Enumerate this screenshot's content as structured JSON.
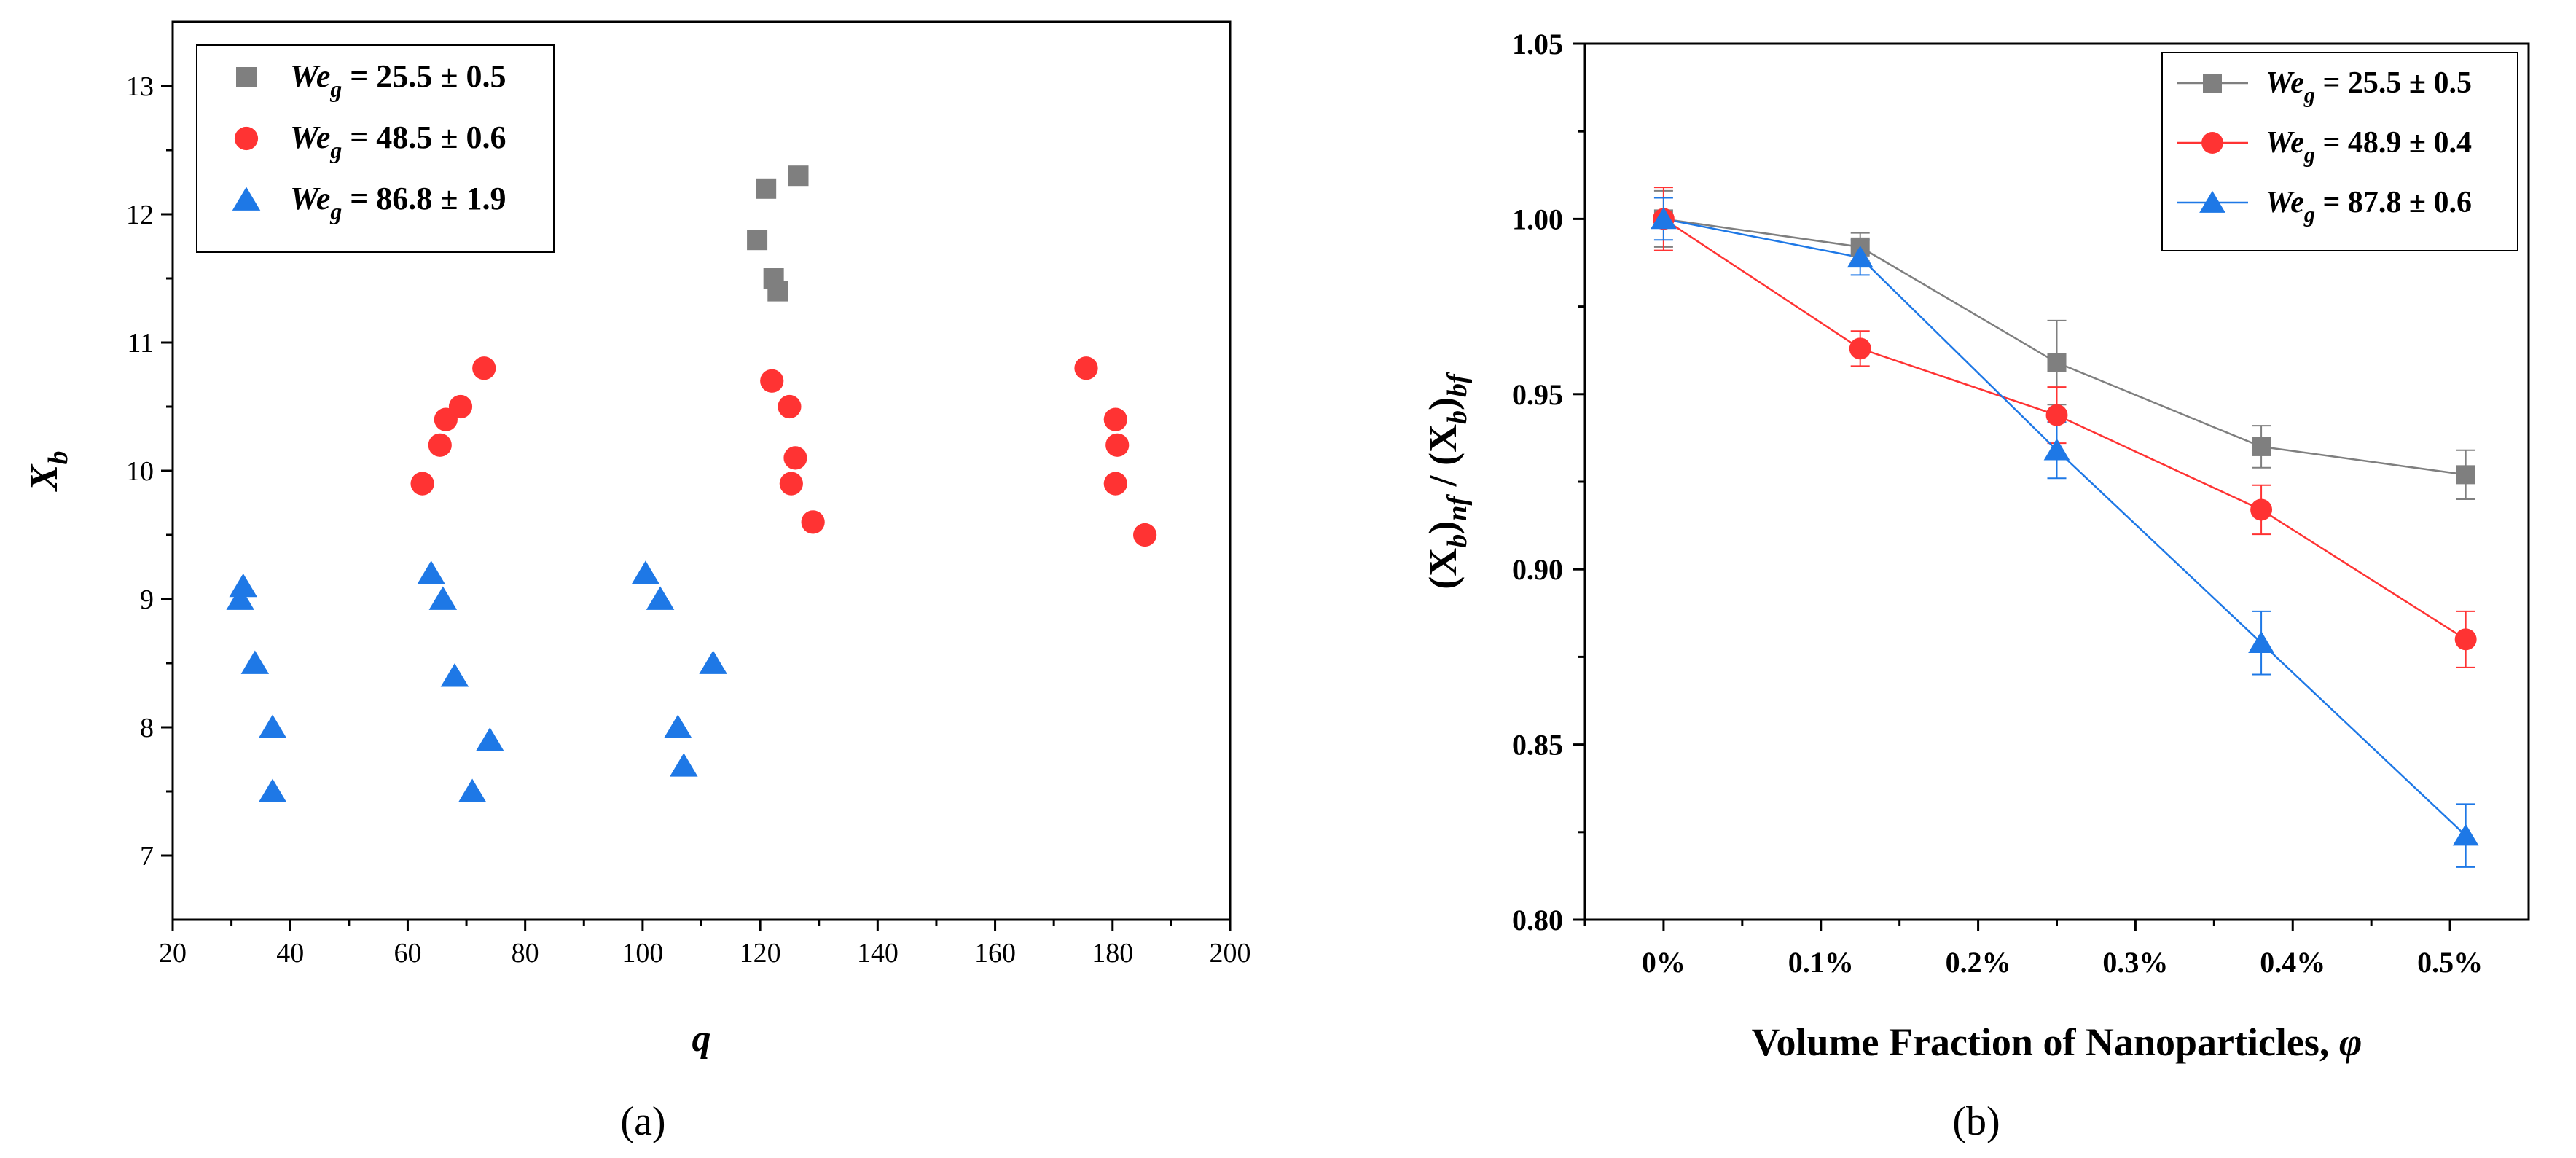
{
  "chart_data": [
    {
      "type": "scatter",
      "panel_label": "(a)",
      "xlabel": "q",
      "ylabel_base": "X",
      "ylabel_sub": "b",
      "xlim": [
        20,
        200
      ],
      "ylim": [
        6.5,
        13.5
      ],
      "xticks": [
        20,
        40,
        60,
        80,
        100,
        120,
        140,
        160,
        180,
        200
      ],
      "yticks": [
        7,
        8,
        9,
        10,
        11,
        12,
        13
      ],
      "legend_position": "top-left",
      "series": [
        {
          "name_base": "We",
          "name_sub": "g",
          "name_rest": " = 25.5 ± 0.5",
          "marker": "square",
          "color": "#7f7f7f",
          "points": [
            [
              119.5,
              11.8
            ],
            [
              121,
              12.2
            ],
            [
              122.3,
              11.5
            ],
            [
              123,
              11.4
            ],
            [
              126.5,
              12.3
            ]
          ]
        },
        {
          "name_base": "We",
          "name_sub": "g",
          "name_rest": " = 48.5 ± 0.6",
          "marker": "circle",
          "color": "#ff3333",
          "points": [
            [
              62.5,
              9.9
            ],
            [
              65.5,
              10.2
            ],
            [
              66.5,
              10.4
            ],
            [
              69,
              10.5
            ],
            [
              73,
              10.8
            ],
            [
              122,
              10.7
            ],
            [
              125,
              10.5
            ],
            [
              125.3,
              9.9
            ],
            [
              126,
              10.1
            ],
            [
              129,
              9.6
            ],
            [
              175.5,
              10.8
            ],
            [
              180.5,
              10.4
            ],
            [
              180.5,
              9.9
            ],
            [
              180.8,
              10.2
            ],
            [
              185.5,
              9.5
            ]
          ]
        },
        {
          "name_base": "We",
          "name_sub": "g",
          "name_rest": " = 86.8 ± 1.9",
          "marker": "triangle",
          "color": "#1e78e6",
          "points": [
            [
              31.5,
              9.0
            ],
            [
              32,
              9.1
            ],
            [
              34,
              8.5
            ],
            [
              37,
              8.0
            ],
            [
              37,
              7.5
            ],
            [
              64,
              9.2
            ],
            [
              66,
              9.0
            ],
            [
              68,
              8.4
            ],
            [
              71,
              7.5
            ],
            [
              74,
              7.9
            ],
            [
              100.5,
              9.2
            ],
            [
              103,
              9.0
            ],
            [
              106,
              8.0
            ],
            [
              107,
              7.7
            ],
            [
              112,
              8.5
            ]
          ]
        }
      ]
    },
    {
      "type": "line",
      "panel_label": "(b)",
      "xlabel": "Volume Fraction of Nanoparticles, ",
      "xlabel_symbol": "φ",
      "ylabel_parts": [
        "(X",
        "b",
        ")",
        "nf",
        " / (X",
        "b",
        ")",
        "bf"
      ],
      "categories": [
        "0%",
        "0.1%",
        "0.2%",
        "0.3%",
        "0.4%",
        "0.5%"
      ],
      "xlim": [
        -0.05,
        0.55
      ],
      "xtick_values": [
        0,
        0.1,
        0.2,
        0.3,
        0.4,
        0.5
      ],
      "ylim": [
        0.8,
        1.05
      ],
      "yticks": [
        "0.80",
        "0.85",
        "0.90",
        "0.95",
        "1.00",
        "1.05"
      ],
      "legend_position": "top-right",
      "series": [
        {
          "name_base": "We",
          "name_sub": "g",
          "name_rest": " = 25.5 ± 0.5",
          "marker": "square",
          "color": "#7f7f7f",
          "x": [
            0,
            0.125,
            0.25,
            0.38,
            0.51
          ],
          "values": [
            1.0,
            0.992,
            0.959,
            0.935,
            0.927
          ],
          "errors": [
            0.008,
            0.004,
            0.012,
            0.006,
            0.007
          ]
        },
        {
          "name_base": "We",
          "name_sub": "g",
          "name_rest": " = 48.9 ± 0.4",
          "marker": "circle",
          "color": "#ff3333",
          "x": [
            0,
            0.125,
            0.25,
            0.38,
            0.51
          ],
          "values": [
            1.0,
            0.963,
            0.944,
            0.917,
            0.88
          ],
          "errors": [
            0.009,
            0.005,
            0.008,
            0.007,
            0.008
          ]
        },
        {
          "name_base": "We",
          "name_sub": "g",
          "name_rest": " = 87.8 ± 0.6",
          "marker": "triangle",
          "color": "#1e78e6",
          "x": [
            0,
            0.125,
            0.25,
            0.38,
            0.51
          ],
          "values": [
            1.0,
            0.989,
            0.934,
            0.879,
            0.824
          ],
          "errors": [
            0.006,
            0.005,
            0.008,
            0.009,
            0.009
          ]
        }
      ]
    }
  ]
}
